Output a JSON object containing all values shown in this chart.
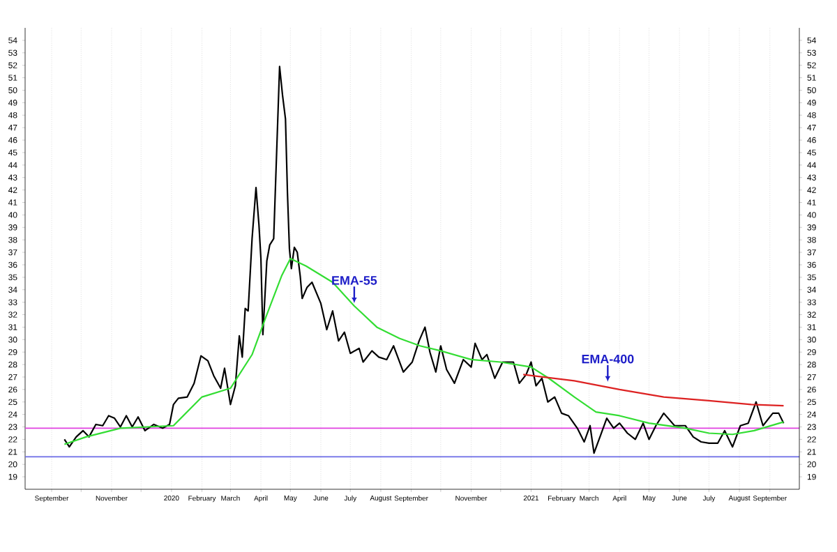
{
  "chart_data": {
    "type": "line",
    "series": [
      {
        "color": "#000000",
        "x": [
          "2019-09-14",
          "2019-09-19",
          "2019-09-26",
          "2019-10-03",
          "2019-10-09",
          "2019-10-16",
          "2019-10-23",
          "2019-10-29",
          "2019-11-04",
          "2019-11-10",
          "2019-11-16",
          "2019-11-22",
          "2019-11-28",
          "2019-12-05",
          "2019-12-14",
          "2019-12-23",
          "2019-12-30",
          "2020-01-03",
          "2020-01-08",
          "2020-01-17",
          "2020-01-24",
          "2020-01-31",
          "2020-02-07",
          "2020-02-13",
          "2020-02-20",
          "2020-02-24",
          "2020-03-01",
          "2020-03-06",
          "2020-03-10",
          "2020-03-13",
          "2020-03-16",
          "2020-03-19",
          "2020-03-23",
          "2020-03-27",
          "2020-03-30",
          "2020-04-01",
          "2020-04-03",
          "2020-04-07",
          "2020-04-10",
          "2020-04-14",
          "2020-04-20",
          "2020-04-23",
          "2020-04-26",
          "2020-04-28",
          "2020-04-30",
          "2020-05-02",
          "2020-05-05",
          "2020-05-08",
          "2020-05-11",
          "2020-05-13",
          "2020-05-18",
          "2020-05-23",
          "2020-06-01",
          "2020-06-07",
          "2020-06-13",
          "2020-06-19",
          "2020-06-25",
          "2020-07-01",
          "2020-07-10",
          "2020-07-14",
          "2020-07-23",
          "2020-07-30",
          "2020-08-07",
          "2020-08-14",
          "2020-08-24",
          "2020-09-02",
          "2020-09-09",
          "2020-09-15",
          "2020-09-20",
          "2020-09-26",
          "2020-10-01",
          "2020-10-07",
          "2020-10-15",
          "2020-10-24",
          "2020-11-01",
          "2020-11-05",
          "2020-11-12",
          "2020-11-17",
          "2020-11-25",
          "2020-12-03",
          "2020-12-14",
          "2020-12-20",
          "2020-12-27",
          "2021-01-01",
          "2021-01-06",
          "2021-01-12",
          "2021-01-18",
          "2021-01-25",
          "2021-02-01",
          "2021-02-08",
          "2021-02-17",
          "2021-02-24",
          "2021-03-02",
          "2021-03-06",
          "2021-03-13",
          "2021-03-19",
          "2021-03-26",
          "2021-04-01",
          "2021-04-09",
          "2021-04-17",
          "2021-04-25",
          "2021-05-01",
          "2021-05-08",
          "2021-05-16",
          "2021-05-27",
          "2021-06-07",
          "2021-06-15",
          "2021-06-23",
          "2021-07-01",
          "2021-07-10",
          "2021-07-17",
          "2021-07-25",
          "2021-08-02",
          "2021-08-10",
          "2021-08-18",
          "2021-08-25",
          "2021-09-04",
          "2021-09-10",
          "2021-09-15"
        ],
        "values": [
          22.0,
          21.4,
          22.2,
          22.7,
          22.2,
          23.2,
          23.1,
          23.9,
          23.7,
          23.0,
          23.9,
          23.0,
          23.8,
          22.7,
          23.2,
          22.9,
          23.2,
          24.8,
          25.3,
          25.4,
          26.5,
          28.7,
          28.3,
          27.1,
          26.1,
          27.7,
          24.8,
          26.3,
          30.3,
          28.6,
          32.5,
          32.3,
          38.1,
          42.2,
          39.2,
          36.5,
          30.4,
          36.3,
          37.6,
          38.1,
          51.9,
          49.6,
          47.7,
          41.8,
          37.3,
          35.7,
          37.4,
          37.0,
          35.1,
          33.3,
          34.2,
          34.6,
          32.9,
          30.8,
          32.3,
          29.9,
          30.6,
          28.9,
          29.3,
          28.2,
          29.1,
          28.6,
          28.4,
          29.5,
          27.4,
          28.2,
          29.9,
          31.0,
          29.0,
          27.4,
          29.5,
          27.6,
          26.5,
          28.4,
          27.8,
          29.7,
          28.4,
          28.8,
          26.9,
          28.2,
          28.2,
          26.5,
          27.2,
          28.2,
          26.3,
          26.9,
          25.0,
          25.4,
          24.1,
          23.9,
          22.9,
          21.8,
          23.1,
          20.9,
          22.4,
          23.7,
          22.9,
          23.3,
          22.5,
          22.0,
          23.3,
          22.0,
          23.1,
          24.1,
          23.1,
          23.1,
          22.2,
          21.8,
          21.7,
          21.7,
          22.7,
          21.4,
          23.1,
          23.3,
          25.0,
          23.1,
          24.1,
          24.1,
          23.3
        ]
      },
      {
        "color": "#33dd33",
        "x": [
          "2019-09-14",
          "2019-10-06",
          "2019-11-10",
          "2020-01-03",
          "2020-02-01",
          "2020-03-01",
          "2020-03-23",
          "2020-04-06",
          "2020-04-22",
          "2020-05-01",
          "2020-05-17",
          "2020-06-13",
          "2020-07-05",
          "2020-07-28",
          "2020-08-20",
          "2020-09-10",
          "2020-10-01",
          "2020-11-01",
          "2020-12-01",
          "2021-01-01",
          "2021-01-19",
          "2021-02-14",
          "2021-03-08",
          "2021-04-01",
          "2021-05-01",
          "2021-06-07",
          "2021-07-01",
          "2021-07-25",
          "2021-08-16",
          "2021-09-15"
        ],
        "values": [
          21.6,
          22.2,
          22.9,
          23.1,
          25.4,
          26.1,
          28.8,
          31.8,
          35.1,
          36.5,
          35.9,
          34.6,
          32.7,
          31.0,
          30.1,
          29.5,
          29.1,
          28.4,
          28.2,
          27.8,
          26.9,
          25.4,
          24.2,
          23.9,
          23.3,
          22.9,
          22.5,
          22.4,
          22.7,
          23.4
        ]
      },
      {
        "color": "#dd2222",
        "x": [
          "2020-12-24",
          "2021-02-14",
          "2021-04-01",
          "2021-05-16",
          "2021-07-01",
          "2021-08-13",
          "2021-09-15"
        ],
        "values": [
          27.2,
          26.7,
          26.0,
          25.4,
          25.1,
          24.8,
          24.7
        ]
      }
    ],
    "ref_lines": [
      {
        "axis": "y",
        "value": 22.9,
        "color": "#e040e0"
      },
      {
        "axis": "y",
        "value": 20.6,
        "color": "#6a6ae6"
      }
    ],
    "annotations": [
      {
        "text": "EMA-55",
        "x": "2020-07-05",
        "y": 32.7
      },
      {
        "text": "EMA-400",
        "x": "2021-03-20",
        "y": 26.4
      }
    ],
    "xlim": [
      "2019-08-05",
      "2021-10-01"
    ],
    "xticks": [
      {
        "value": "2019-09-01",
        "label": "September"
      },
      {
        "value": "2019-10-01",
        "label": null
      },
      {
        "value": "2019-11-01",
        "label": "November"
      },
      {
        "value": "2019-12-01",
        "label": null
      },
      {
        "value": "2020-01-01",
        "label": "2020"
      },
      {
        "value": "2020-02-01",
        "label": "February"
      },
      {
        "value": "2020-03-01",
        "label": "March"
      },
      {
        "value": "2020-04-01",
        "label": "April"
      },
      {
        "value": "2020-05-01",
        "label": "May"
      },
      {
        "value": "2020-06-01",
        "label": "June"
      },
      {
        "value": "2020-07-01",
        "label": "July"
      },
      {
        "value": "2020-08-01",
        "label": "August"
      },
      {
        "value": "2020-09-01",
        "label": "September"
      },
      {
        "value": "2020-10-01",
        "label": null
      },
      {
        "value": "2020-11-01",
        "label": "November"
      },
      {
        "value": "2020-12-01",
        "label": null
      },
      {
        "value": "2021-01-01",
        "label": "2021"
      },
      {
        "value": "2021-02-01",
        "label": "February"
      },
      {
        "value": "2021-03-01",
        "label": "March"
      },
      {
        "value": "2021-04-01",
        "label": "April"
      },
      {
        "value": "2021-05-01",
        "label": "May"
      },
      {
        "value": "2021-06-01",
        "label": "June"
      },
      {
        "value": "2021-07-01",
        "label": "July"
      },
      {
        "value": "2021-08-01",
        "label": "August"
      },
      {
        "value": "2021-09-01",
        "label": "September"
      }
    ],
    "ylim": [
      18,
      55
    ],
    "yticks": [
      19,
      20,
      21,
      22,
      23,
      24,
      25,
      26,
      27,
      28,
      29,
      30,
      31,
      32,
      33,
      34,
      35,
      36,
      37,
      38,
      39,
      40,
      41,
      42,
      43,
      44,
      45,
      46,
      47,
      48,
      49,
      50,
      51,
      52,
      53,
      54
    ],
    "y2lim": [
      18,
      55
    ],
    "y2ticks": [
      19,
      20,
      21,
      22,
      23,
      24,
      25,
      26,
      27,
      28,
      29,
      30,
      31,
      32,
      33,
      34,
      35,
      36,
      37,
      38,
      39,
      40,
      41,
      42,
      43,
      44,
      45,
      46,
      47,
      48,
      49,
      50,
      51,
      52,
      53,
      54
    ],
    "grid": "x",
    "marker": "none",
    "line_style": "solid"
  }
}
